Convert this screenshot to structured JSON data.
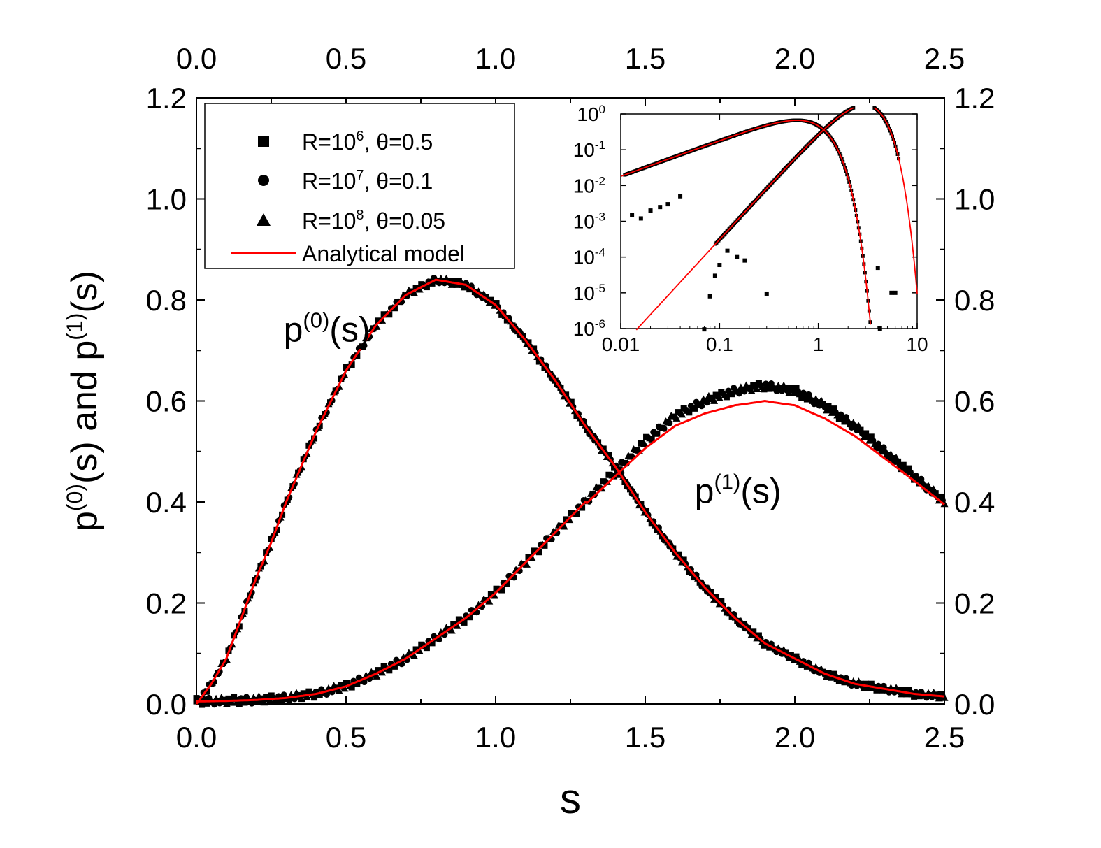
{
  "chart_data": {
    "type": "scatter",
    "xlabel": "s",
    "ylabel": {
      "base": "p",
      "sup0": "(0)",
      "mid": "(s) and p",
      "sup1": "(1)",
      "end": "(s)"
    },
    "xlim": [
      0,
      2.5
    ],
    "ylim": [
      0,
      1.2
    ],
    "x_ticks": [
      "0.0",
      "0.5",
      "1.0",
      "1.5",
      "2.0",
      "2.5"
    ],
    "y_ticks": [
      "0.0",
      "0.2",
      "0.4",
      "0.6",
      "0.8",
      "1.0",
      "1.2"
    ],
    "x_tick_values": [
      0,
      0.5,
      1.0,
      1.5,
      2.0,
      2.5
    ],
    "y_tick_values": [
      0,
      0.2,
      0.4,
      0.6,
      0.8,
      1.0,
      1.2
    ],
    "annotations": {
      "p0": {
        "base": "p",
        "sup": "(0)",
        "end": "(s)",
        "x": 0.45,
        "y": 0.74
      },
      "p1": {
        "base": "p",
        "sup": "(1)",
        "end": "(s)",
        "x": 1.88,
        "y": 0.42
      }
    },
    "legend": [
      {
        "marker": "square",
        "label": "R=10",
        "sup": "6",
        "rest": ", θ=0.5"
      },
      {
        "marker": "circle",
        "label": "R=10",
        "sup": "7",
        "rest": ", θ=0.1"
      },
      {
        "marker": "triangle",
        "label": "R=10",
        "sup": "8",
        "rest": ", θ=0.05"
      },
      {
        "marker": "line",
        "label": "Analytical model",
        "sup": "",
        "rest": ""
      }
    ],
    "series": [
      {
        "name": "p(0)(s) simulation",
        "marker": "mixed",
        "color": "#000000",
        "x": [
          0.0,
          0.05,
          0.1,
          0.15,
          0.2,
          0.25,
          0.3,
          0.4,
          0.5,
          0.6,
          0.7,
          0.8,
          0.9,
          1.0,
          1.1,
          1.2,
          1.3,
          1.4,
          1.5,
          1.6,
          1.7,
          1.8,
          1.9,
          2.0,
          2.1,
          2.2,
          2.3,
          2.4,
          2.5
        ],
        "y": [
          0.0,
          0.04,
          0.09,
          0.17,
          0.25,
          0.32,
          0.4,
          0.54,
          0.66,
          0.75,
          0.81,
          0.84,
          0.83,
          0.79,
          0.72,
          0.64,
          0.55,
          0.47,
          0.38,
          0.3,
          0.23,
          0.17,
          0.12,
          0.09,
          0.06,
          0.04,
          0.03,
          0.02,
          0.015
        ]
      },
      {
        "name": "p(1)(s) simulation",
        "marker": "mixed",
        "color": "#000000",
        "x": [
          0.0,
          0.1,
          0.2,
          0.3,
          0.4,
          0.5,
          0.6,
          0.7,
          0.8,
          0.9,
          1.0,
          1.1,
          1.2,
          1.3,
          1.4,
          1.5,
          1.6,
          1.7,
          1.8,
          1.9,
          2.0,
          2.1,
          2.2,
          2.3,
          2.4,
          2.5
        ],
        "y": [
          0.005,
          0.006,
          0.008,
          0.012,
          0.02,
          0.035,
          0.06,
          0.09,
          0.13,
          0.17,
          0.22,
          0.28,
          0.34,
          0.4,
          0.46,
          0.52,
          0.57,
          0.6,
          0.62,
          0.63,
          0.62,
          0.59,
          0.55,
          0.5,
          0.45,
          0.4
        ]
      },
      {
        "name": "Analytical model p(0)",
        "marker": "line",
        "color": "#ff0000"
      },
      {
        "name": "Analytical model p(1)",
        "marker": "line",
        "color": "#ff0000"
      }
    ],
    "inset": {
      "type": "line",
      "scale": "log-log",
      "xlim": [
        0.01,
        10
      ],
      "ylim": [
        1e-06,
        1
      ],
      "x_ticks": [
        "0.01",
        "0.1",
        "1",
        "10"
      ],
      "x_tick_values": [
        0.01,
        0.1,
        1,
        10
      ],
      "y_ticks": [
        {
          "base": "10",
          "sup": "0",
          "v": 1
        },
        {
          "base": "10",
          "sup": "-1",
          "v": 0.1
        },
        {
          "base": "10",
          "sup": "-2",
          "v": 0.01
        },
        {
          "base": "10",
          "sup": "-3",
          "v": 0.001
        },
        {
          "base": "10",
          "sup": "-4",
          "v": 0.0001
        },
        {
          "base": "10",
          "sup": "-5",
          "v": 1e-05
        },
        {
          "base": "10",
          "sup": "-6",
          "v": 1e-06
        }
      ],
      "scatter_points": [
        {
          "x": 0.013,
          "y": 0.0015
        },
        {
          "x": 0.016,
          "y": 0.0012
        },
        {
          "x": 0.02,
          "y": 0.002
        },
        {
          "x": 0.025,
          "y": 0.0025
        },
        {
          "x": 0.03,
          "y": 0.003
        },
        {
          "x": 0.04,
          "y": 0.005
        },
        {
          "x": 0.07,
          "y": 9.5e-07
        },
        {
          "x": 0.08,
          "y": 8e-06
        },
        {
          "x": 0.09,
          "y": 3e-05
        },
        {
          "x": 0.1,
          "y": 6e-05
        },
        {
          "x": 0.12,
          "y": 0.00015
        },
        {
          "x": 0.15,
          "y": 0.0001
        },
        {
          "x": 0.18,
          "y": 8e-05
        },
        {
          "x": 0.3,
          "y": 9.5e-06
        },
        {
          "x": 4.0,
          "y": 5e-05
        },
        {
          "x": 4.2,
          "y": 1e-06
        },
        {
          "x": 5.5,
          "y": 1e-05
        },
        {
          "x": 6.0,
          "y": 1e-05
        }
      ]
    }
  }
}
